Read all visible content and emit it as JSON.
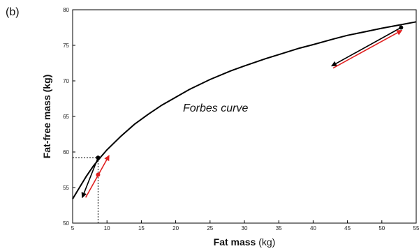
{
  "chart_data": {
    "type": "line",
    "panel_label": "(b)",
    "xlabel": "Fat mass",
    "xlabel_unit": "(kg)",
    "ylabel": "Fat-free mass (kg)",
    "xlim": [
      5,
      55
    ],
    "ylim": [
      50,
      80
    ],
    "xticks": [
      5,
      10,
      15,
      20,
      25,
      30,
      35,
      40,
      45,
      50,
      55
    ],
    "yticks": [
      50,
      55,
      60,
      65,
      70,
      75,
      80
    ],
    "grid": false,
    "annotation": "Forbes curve",
    "curve": {
      "name": "Forbes curve",
      "color": "#000000",
      "x": [
        5,
        6,
        7,
        8,
        9,
        10,
        12,
        14,
        16,
        18,
        20,
        22,
        25,
        28,
        30,
        33,
        35,
        38,
        40,
        43,
        45,
        48,
        50,
        52.8,
        55
      ],
      "y": [
        53.4,
        55.0,
        56.6,
        58.0,
        59.2,
        60.3,
        62.2,
        63.9,
        65.3,
        66.6,
        67.7,
        68.8,
        70.2,
        71.4,
        72.1,
        73.1,
        73.7,
        74.6,
        75.1,
        75.9,
        76.4,
        77.0,
        77.4,
        77.9,
        78.3
      ]
    },
    "points": [
      {
        "x": 8.7,
        "y": 59.2,
        "color": "#000000"
      },
      {
        "x": 8.7,
        "y": 56.8,
        "color": "#e02020"
      },
      {
        "x": 52.8,
        "y": 77.5,
        "color": "#000000"
      }
    ],
    "arrows": [
      {
        "x1": 8.7,
        "y1": 59.2,
        "x2": 6.4,
        "y2": 53.6,
        "color": "#000000"
      },
      {
        "x1": 6.9,
        "y1": 53.6,
        "x2": 10.3,
        "y2": 59.5,
        "color": "#e02020"
      },
      {
        "x1": 52.8,
        "y1": 77.5,
        "x2": 42.7,
        "y2": 72.1,
        "color": "#000000"
      },
      {
        "x1": 42.9,
        "y1": 71.8,
        "x2": 52.9,
        "y2": 77.1,
        "color": "#e02020"
      }
    ],
    "guides": [
      {
        "x1": 5,
        "y1": 59.2,
        "x2": 8.7,
        "y2": 59.2
      },
      {
        "x1": 8.7,
        "y1": 50,
        "x2": 8.7,
        "y2": 59.2
      }
    ]
  }
}
